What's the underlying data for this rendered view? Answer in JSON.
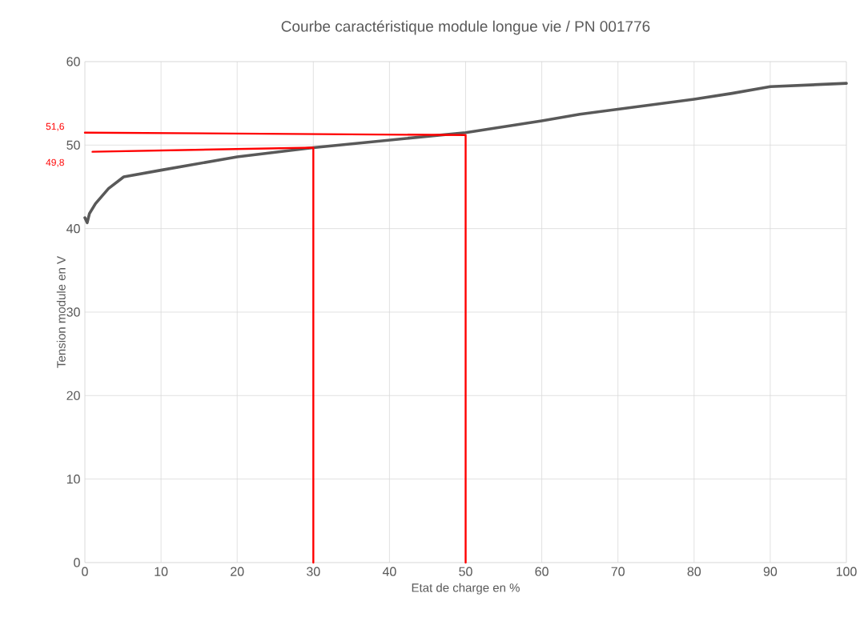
{
  "chart_data": {
    "type": "line",
    "title": "Courbe caractéristique module longue vie / PN 001776",
    "xlabel": "Etat de charge en %",
    "ylabel": "Tension module en V",
    "xlim": [
      0,
      100
    ],
    "ylim": [
      0,
      60
    ],
    "xticks": [
      0,
      10,
      20,
      30,
      40,
      50,
      60,
      70,
      80,
      90,
      100
    ],
    "yticks": [
      0,
      10,
      20,
      30,
      40,
      50,
      60
    ],
    "grid": true,
    "marker": "none",
    "line_style": "solid",
    "series": [
      {
        "color": "#595959",
        "x": [
          0,
          0.3,
          0.6,
          1.4,
          3.1,
          5.1,
          10,
          20,
          30,
          40,
          50,
          60,
          65,
          70,
          80,
          85,
          90,
          100
        ],
        "values": [
          41.3,
          40.7,
          41.8,
          43.0,
          44.8,
          46.2,
          47.0,
          48.6,
          49.7,
          50.6,
          51.5,
          52.9,
          53.7,
          54.3,
          55.5,
          56.2,
          57.0,
          57.4
        ]
      },
      {
        "color": "#ff0000",
        "x": [
          0,
          50,
          50
        ],
        "values": [
          51.5,
          51.2,
          0
        ]
      },
      {
        "color": "#ff0000",
        "x": [
          1,
          30,
          30
        ],
        "values": [
          49.2,
          49.7,
          0
        ]
      }
    ],
    "annotations": [
      "51,6",
      "49,8"
    ]
  }
}
